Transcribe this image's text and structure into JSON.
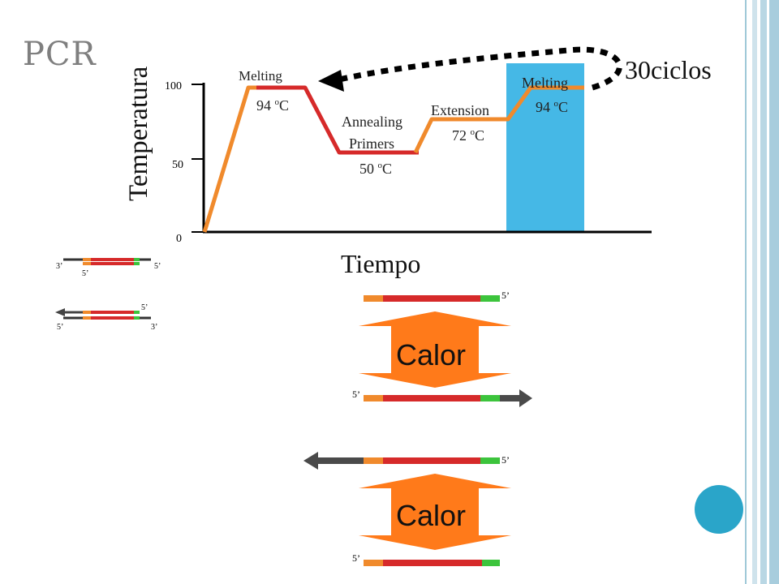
{
  "slide": {
    "title": "PCR"
  },
  "graph": {
    "y_axis_label": "Temperatura",
    "x_axis_label": "Tiempo",
    "y_ticks": [
      "100",
      "50",
      "0"
    ],
    "cycles_label": "30ciclos",
    "steps": [
      {
        "name": "Melting",
        "temp": "94 oC"
      },
      {
        "name": "Annealing",
        "name2": "Primers",
        "temp": "50 oC"
      },
      {
        "name": "Extension",
        "temp": "72 oC"
      },
      {
        "name": "Melting",
        "temp": "94 oC"
      }
    ]
  },
  "strands": {
    "small_top": {
      "left": "3’",
      "primer": "5’",
      "right": "5’"
    },
    "small_bottom": {
      "primer": "5’",
      "left": "5’",
      "right": "3’"
    },
    "group1": {
      "top_end": "5’",
      "heat": "Calor",
      "bottom_end": "5’"
    },
    "group2": {
      "top_end": "5’",
      "heat": "Calor",
      "bottom_end": "5’"
    }
  },
  "colors": {
    "primer_orange": "#f08a2c",
    "template_red": "#d62a2a",
    "primer_green": "#3cc43c",
    "new_strand_gray": "#4a4a4a",
    "highlight_blue": "#45b8e6",
    "heat_arrow": "#ff7a1a",
    "side_bar": "#9fc8d8",
    "dot_circle": "#2aa5c9"
  }
}
